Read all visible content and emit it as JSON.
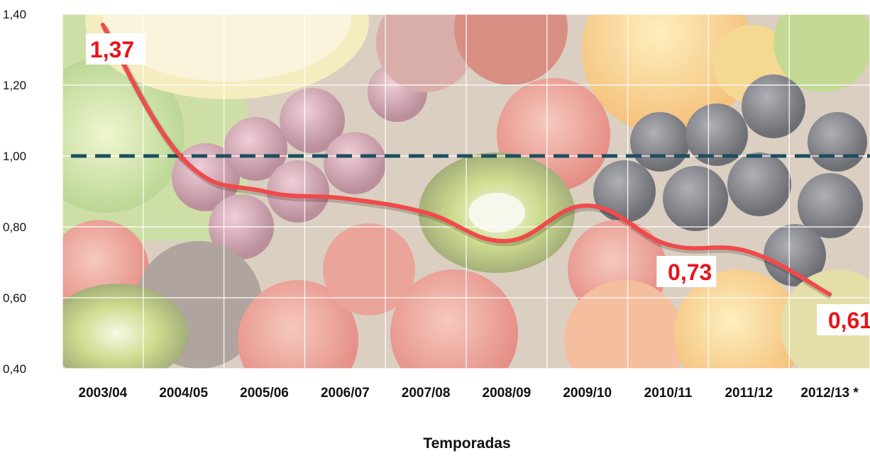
{
  "chart_data": {
    "type": "line",
    "title": "",
    "xlabel": "Temporadas",
    "ylabel": "",
    "categories": [
      "2003/04",
      "2004/05",
      "2005/06",
      "2006/07",
      "2007/08",
      "2008/09",
      "2009/10",
      "2010/11",
      "2011/12",
      "2012/13 *"
    ],
    "series": [
      {
        "values": [
          1.37,
          0.99,
          0.9,
          0.88,
          0.84,
          0.76,
          0.86,
          0.75,
          0.73,
          0.61
        ]
      }
    ],
    "reference_line": {
      "value": 1.0,
      "style": "dashed"
    },
    "ylim": [
      0.4,
      1.4
    ],
    "y_ticks": [
      "0,40",
      "0,60",
      "0,80",
      "1,00",
      "1,20",
      "1,40"
    ],
    "data_labels": [
      {
        "category": "2003/04",
        "text": "1,37"
      },
      {
        "category": "2011/12",
        "text": "0,73"
      },
      {
        "category": "2012/13 *",
        "text": "0,61"
      }
    ],
    "grid": true,
    "legend": "none",
    "background": "photo of fruit (apples, grapes, kiwis, strawberries, oranges)",
    "colors": {
      "line": "#f04a4a",
      "reference": "#1d4e60",
      "label": "#e8141a",
      "grid": "#ffffff"
    }
  }
}
